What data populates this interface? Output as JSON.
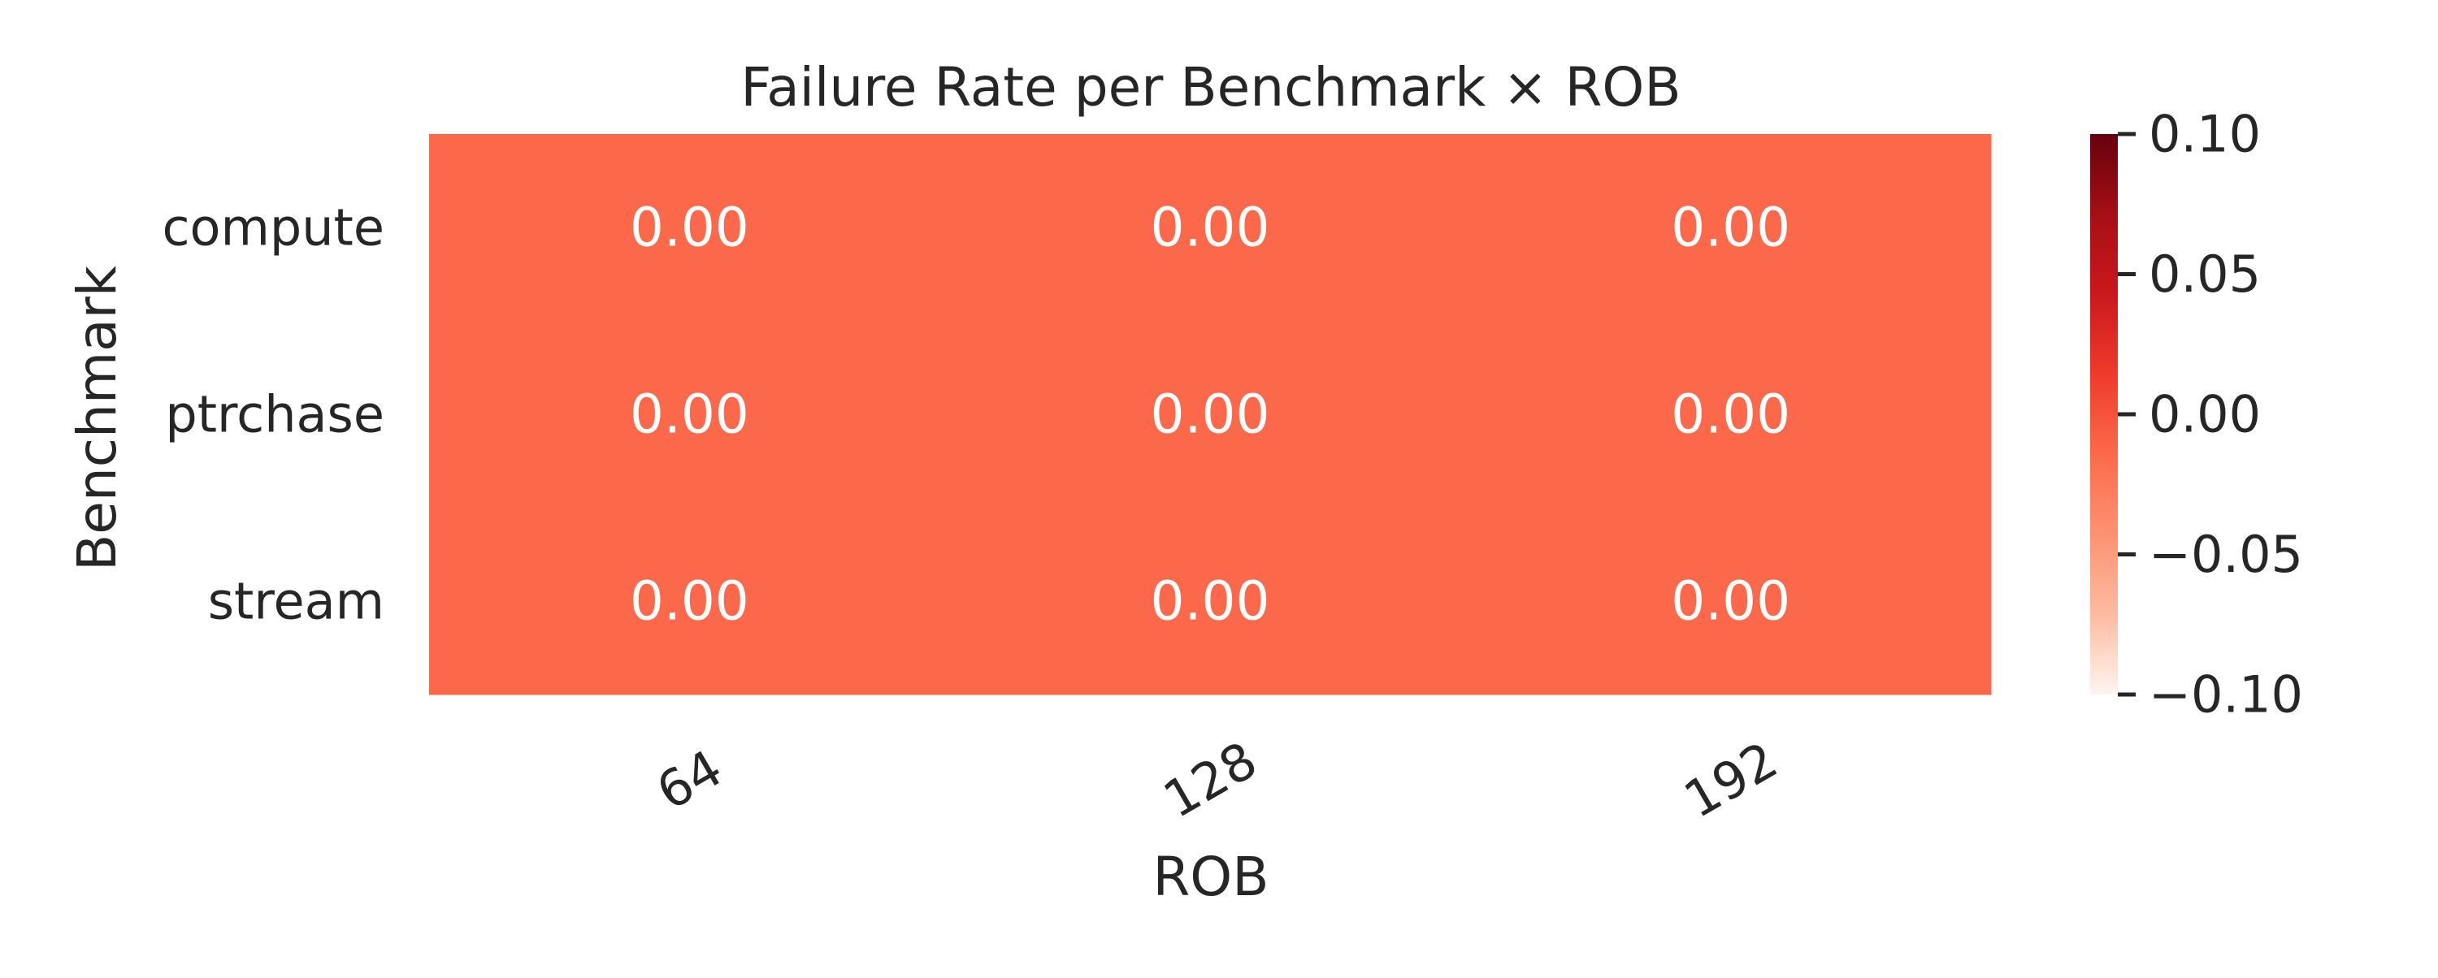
{
  "chart_data": {
    "type": "heatmap",
    "title": "Failure Rate per Benchmark × ROB",
    "xlabel": "ROB",
    "ylabel": "Benchmark",
    "x_categories": [
      "64",
      "128",
      "192"
    ],
    "y_categories": [
      "compute",
      "ptrchase",
      "stream"
    ],
    "values": [
      [
        0.0,
        0.0,
        0.0
      ],
      [
        0.0,
        0.0,
        0.0
      ],
      [
        0.0,
        0.0,
        0.0
      ]
    ],
    "cell_labels": [
      [
        "0.00",
        "0.00",
        "0.00"
      ],
      [
        "0.00",
        "0.00",
        "0.00"
      ],
      [
        "0.00",
        "0.00",
        "0.00"
      ]
    ],
    "colorbar": {
      "colormap": "Reds",
      "vmin": -0.1,
      "vmax": 0.1,
      "ticks": [
        0.1,
        0.05,
        0.0,
        -0.05,
        -0.1
      ],
      "tick_labels": [
        "0.10",
        "0.05",
        "0.00",
        "−0.05",
        "−0.10"
      ]
    },
    "colors": {
      "cell_fill": "#fb694a",
      "cell_text": "#ffffff",
      "text": "#262626",
      "colormap_stops": [
        "#fff5f0",
        "#fcbba1",
        "#fc9272",
        "#fb6a4a",
        "#ef3b2c",
        "#cb181d",
        "#a50f15",
        "#67000d"
      ]
    }
  }
}
